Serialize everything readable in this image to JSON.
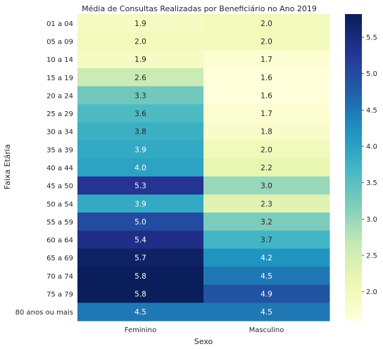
{
  "chart_data": {
    "type": "heatmap",
    "title": "Média de Consultas Realizadas por Beneficiário no Ano 2019",
    "xlabel": "Sexo",
    "ylabel": "Faixa Etária",
    "x_categories": [
      "Feminino",
      "Masculino"
    ],
    "y_categories": [
      "01 a 04",
      "05 a 09",
      "10 a 14",
      "15 a 19",
      "20 a 24",
      "25 a 29",
      "30 a 34",
      "35 a 39",
      "40 a 44",
      "45 a 50",
      "50 a 54",
      "55 a 59",
      "60 a 64",
      "65 a 69",
      "70 a 74",
      "75 a 79",
      "80 anos ou mais"
    ],
    "values": [
      [
        1.9,
        2.0
      ],
      [
        2.0,
        2.0
      ],
      [
        1.9,
        1.7
      ],
      [
        2.6,
        1.6
      ],
      [
        3.3,
        1.6
      ],
      [
        3.6,
        1.7
      ],
      [
        3.8,
        1.8
      ],
      [
        3.9,
        2.0
      ],
      [
        4.0,
        2.2
      ],
      [
        5.3,
        3.0
      ],
      [
        3.9,
        2.3
      ],
      [
        5.0,
        3.2
      ],
      [
        5.4,
        3.7
      ],
      [
        5.7,
        4.2
      ],
      [
        5.8,
        4.5
      ],
      [
        5.8,
        4.9
      ],
      [
        4.5,
        4.5
      ]
    ],
    "cell_labels": [
      [
        "1.9",
        "2.0"
      ],
      [
        "2.0",
        "2.0"
      ],
      [
        "1.9",
        "1.7"
      ],
      [
        "2.6",
        "1.6"
      ],
      [
        "3.3",
        "1.6"
      ],
      [
        "3.6",
        "1.7"
      ],
      [
        "3.8",
        "1.8"
      ],
      [
        "3.9",
        "2.0"
      ],
      [
        "4.0",
        "2.2"
      ],
      [
        "5.3",
        "3.0"
      ],
      [
        "3.9",
        "2.3"
      ],
      [
        "5.0",
        "3.2"
      ],
      [
        "5.4",
        "3.7"
      ],
      [
        "5.7",
        "4.2"
      ],
      [
        "5.8",
        "4.5"
      ],
      [
        "5.8",
        "4.9"
      ],
      [
        "4.5",
        "4.5"
      ]
    ],
    "colorscale": "YlGnBu",
    "vmin": 1.6,
    "vmax": 5.82,
    "colorbar_ticks": [
      "2.0",
      "2.5",
      "3.0",
      "3.5",
      "4.0",
      "4.5",
      "5.0",
      "5.5"
    ],
    "grid": false,
    "colorbar_position": "right"
  }
}
